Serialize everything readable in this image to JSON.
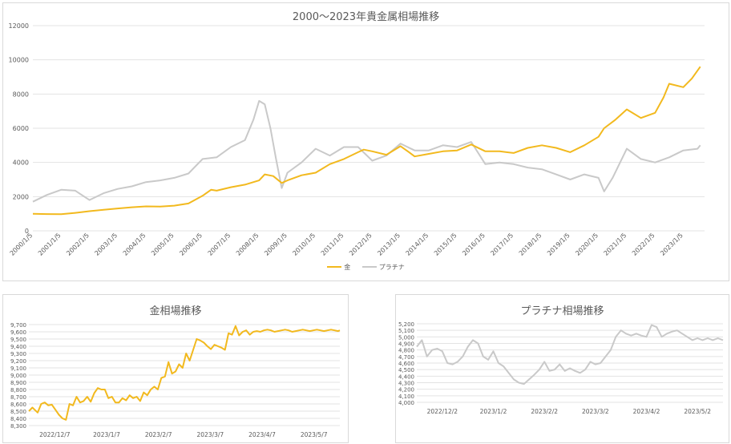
{
  "colors": {
    "gold": "#f2b91e",
    "platinum": "#c9c9c9",
    "grid": "#e3e3e3",
    "axis_text": "#595959"
  },
  "chart_data": [
    {
      "type": "line",
      "title": "2000〜2023年貴金属相場推移",
      "ylim": [
        0,
        12000
      ],
      "yticks": [
        0,
        2000,
        4000,
        6000,
        8000,
        10000,
        12000
      ],
      "xlim": [
        2000.0,
        2023.75
      ],
      "xticks": [
        "2000/1/5",
        "2001/1/5",
        "2002/1/5",
        "2003/1/5",
        "2004/1/5",
        "2005/1/5",
        "2006/1/5",
        "2007/1/5",
        "2008/1/5",
        "2009/1/5",
        "2010/1/5",
        "2011/1/5",
        "2012/1/5",
        "2013/1/5",
        "2014/1/5",
        "2015/1/5",
        "2016/1/5",
        "2017/1/5",
        "2018/1/5",
        "2019/1/5",
        "2020/1/5",
        "2021/1/5",
        "2022/1/5",
        "2023/1/5"
      ],
      "legend_position": "bottom",
      "series": [
        {
          "name": "金",
          "color": "#f2b91e",
          "x": [
            2000.0,
            2000.5,
            2001.0,
            2001.5,
            2002.0,
            2002.5,
            2003.0,
            2003.5,
            2004.0,
            2004.5,
            2005.0,
            2005.5,
            2006.0,
            2006.3,
            2006.5,
            2007.0,
            2007.5,
            2008.0,
            2008.2,
            2008.5,
            2008.8,
            2009.0,
            2009.5,
            2010.0,
            2010.5,
            2011.0,
            2011.5,
            2011.7,
            2012.0,
            2012.5,
            2013.0,
            2013.3,
            2013.5,
            2014.0,
            2014.5,
            2015.0,
            2015.5,
            2016.0,
            2016.5,
            2017.0,
            2017.5,
            2018.0,
            2018.5,
            2019.0,
            2019.5,
            2020.0,
            2020.2,
            2020.6,
            2021.0,
            2021.5,
            2022.0,
            2022.3,
            2022.5,
            2023.0,
            2023.3,
            2023.6
          ],
          "y": [
            1000,
            980,
            970,
            1050,
            1150,
            1230,
            1310,
            1380,
            1430,
            1420,
            1470,
            1600,
            2050,
            2400,
            2350,
            2550,
            2700,
            2950,
            3300,
            3200,
            2800,
            2950,
            3250,
            3400,
            3900,
            4200,
            4600,
            4750,
            4650,
            4450,
            4950,
            4600,
            4350,
            4500,
            4650,
            4700,
            5050,
            4650,
            4650,
            4550,
            4850,
            5000,
            4850,
            4600,
            5000,
            5500,
            6000,
            6500,
            7100,
            6600,
            6900,
            7800,
            8600,
            8400,
            8900,
            9600
          ]
        },
        {
          "name": "プラチナ",
          "color": "#c9c9c9",
          "x": [
            2000.0,
            2000.5,
            2001.0,
            2001.5,
            2002.0,
            2002.5,
            2003.0,
            2003.5,
            2004.0,
            2004.5,
            2005.0,
            2005.5,
            2006.0,
            2006.5,
            2007.0,
            2007.5,
            2007.8,
            2008.0,
            2008.2,
            2008.4,
            2008.6,
            2008.8,
            2009.0,
            2009.5,
            2010.0,
            2010.5,
            2011.0,
            2011.5,
            2012.0,
            2012.5,
            2013.0,
            2013.5,
            2014.0,
            2014.5,
            2015.0,
            2015.5,
            2016.0,
            2016.5,
            2017.0,
            2017.5,
            2018.0,
            2018.5,
            2019.0,
            2019.5,
            2020.0,
            2020.2,
            2020.5,
            2021.0,
            2021.5,
            2022.0,
            2022.5,
            2023.0,
            2023.5,
            2023.6
          ],
          "y": [
            1700,
            2100,
            2400,
            2350,
            1800,
            2200,
            2450,
            2600,
            2850,
            2950,
            3100,
            3350,
            4200,
            4300,
            4900,
            5300,
            6500,
            7600,
            7400,
            6000,
            4200,
            2500,
            3400,
            4000,
            4800,
            4400,
            4900,
            4900,
            4100,
            4400,
            5100,
            4700,
            4700,
            5000,
            4900,
            5200,
            3900,
            4000,
            3900,
            3700,
            3600,
            3300,
            3000,
            3300,
            3100,
            2300,
            3100,
            4800,
            4200,
            4000,
            4300,
            4700,
            4800,
            5000
          ]
        }
      ]
    },
    {
      "type": "line",
      "title": "金相場推移",
      "ylim": [
        8300,
        9700
      ],
      "yticks": [
        "8,300",
        "8,400",
        "8,500",
        "8,600",
        "8,700",
        "8,800",
        "8,900",
        "9,000",
        "9,100",
        "9,200",
        "9,300",
        "9,400",
        "9,500",
        "9,600",
        "9,700"
      ],
      "xticks": [
        "2022/12/7",
        "2023/1/7",
        "2023/2/7",
        "2023/3/7",
        "2023/4/7",
        "2023/5/7"
      ],
      "series": [
        {
          "name": "金",
          "color": "#f2b91e",
          "x": [
            0,
            2,
            5,
            7,
            9,
            11,
            13,
            15,
            17,
            19,
            21,
            23,
            25,
            27,
            29,
            31,
            33,
            35,
            37,
            39,
            41,
            43,
            45,
            47,
            49,
            51,
            53,
            55,
            57,
            59,
            61,
            63,
            65,
            67,
            69,
            71,
            73,
            75,
            77,
            79,
            81,
            83,
            85,
            87,
            89,
            91,
            93,
            95,
            97,
            99,
            101,
            103,
            105,
            107,
            109,
            111,
            113,
            115,
            117,
            119,
            121,
            123,
            125,
            127,
            129,
            131,
            133,
            135,
            137,
            139,
            141,
            143,
            145,
            147,
            149,
            151,
            153,
            155,
            157,
            159,
            161,
            163,
            165,
            167,
            169,
            171,
            173,
            175,
            176
          ],
          "y": [
            8500,
            8550,
            8480,
            8600,
            8620,
            8580,
            8590,
            8520,
            8450,
            8400,
            8380,
            8600,
            8580,
            8700,
            8620,
            8640,
            8700,
            8630,
            8750,
            8820,
            8800,
            8800,
            8680,
            8700,
            8620,
            8620,
            8680,
            8650,
            8720,
            8680,
            8700,
            8640,
            8760,
            8720,
            8800,
            8840,
            8800,
            8960,
            8980,
            9180,
            9020,
            9050,
            9150,
            9100,
            9300,
            9200,
            9350,
            9500,
            9480,
            9450,
            9400,
            9360,
            9420,
            9400,
            9380,
            9350,
            9580,
            9560,
            9680,
            9550,
            9600,
            9620,
            9560,
            9600,
            9610,
            9600,
            9620,
            9630,
            9620,
            9600,
            9610,
            9620,
            9630,
            9620,
            9600,
            9610,
            9620,
            9630,
            9620,
            9610,
            9620,
            9630,
            9620,
            9610,
            9620,
            9630,
            9620,
            9610,
            9620
          ]
        }
      ]
    },
    {
      "type": "line",
      "title": "プラチナ相場推移",
      "ylim": [
        4000,
        5200
      ],
      "yticks": [
        "4,000",
        "4,100",
        "4,200",
        "4,300",
        "4,400",
        "4,500",
        "4,600",
        "4,700",
        "4,800",
        "4,900",
        "5,000",
        "5,100",
        "5,200"
      ],
      "xticks": [
        "2022/12/2",
        "2023/1/2",
        "2023/2/2",
        "2023/3/2",
        "2023/4/2",
        "2023/5/2"
      ],
      "series": [
        {
          "name": "プラチナ",
          "color": "#c9c9c9",
          "x": [
            0,
            3,
            6,
            9,
            12,
            15,
            18,
            21,
            24,
            27,
            30,
            33,
            36,
            39,
            42,
            45,
            48,
            51,
            54,
            57,
            60,
            63,
            66,
            69,
            72,
            75,
            78,
            81,
            84,
            87,
            90,
            93,
            96,
            99,
            102,
            105,
            108,
            111,
            114,
            117,
            120,
            123,
            126,
            129,
            132,
            135,
            138,
            141,
            144,
            147,
            150,
            153,
            156,
            159,
            162,
            165,
            168,
            171,
            174,
            177,
            180
          ],
          "y": [
            4850,
            4950,
            4700,
            4800,
            4820,
            4780,
            4600,
            4580,
            4620,
            4700,
            4850,
            4950,
            4900,
            4700,
            4650,
            4780,
            4600,
            4550,
            4450,
            4350,
            4300,
            4280,
            4350,
            4420,
            4500,
            4620,
            4480,
            4500,
            4580,
            4480,
            4520,
            4480,
            4450,
            4500,
            4620,
            4580,
            4600,
            4700,
            4800,
            5000,
            5100,
            5050,
            5020,
            5050,
            5020,
            5000,
            5180,
            5150,
            5000,
            5050,
            5080,
            5100,
            5050,
            5000,
            4950,
            4980,
            4950,
            4980,
            4950,
            4980,
            4950
          ]
        }
      ]
    }
  ]
}
